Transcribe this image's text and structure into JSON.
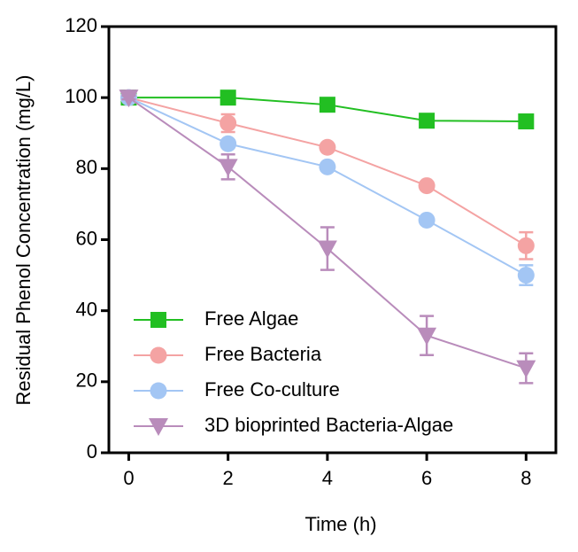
{
  "chart_data": {
    "type": "line",
    "x_label": "Time (h)",
    "y_label": "Residual Phenol Concentration (mg/L)",
    "x": [
      0,
      2,
      4,
      6,
      8
    ],
    "xlim": [
      -0.4,
      8.6
    ],
    "xticks": [
      0,
      2,
      4,
      6,
      8
    ],
    "ylim": [
      0,
      120
    ],
    "yticks": [
      0,
      20,
      40,
      60,
      80,
      100,
      120
    ],
    "legend": "lower-left",
    "series": [
      {
        "name": "Free Algae",
        "color": "#22bf22",
        "marker": "square",
        "values": [
          100,
          100,
          98,
          93.5,
          93.3
        ],
        "errors": [
          0.5,
          0.5,
          0.5,
          0.5,
          0.5
        ]
      },
      {
        "name": "Free Bacteria",
        "color": "#f4a3a3",
        "marker": "circle",
        "values": [
          100,
          92.8,
          86,
          75.2,
          58.3
        ],
        "errors": [
          0.5,
          2.5,
          0.8,
          1,
          3.8
        ]
      },
      {
        "name": "Free Co-culture",
        "color": "#a3c6f4",
        "marker": "circle",
        "values": [
          100,
          87,
          80.5,
          65.5,
          50
        ],
        "errors": [
          0.5,
          1,
          1,
          1,
          2.8
        ]
      },
      {
        "name": "3D bioprinted Bacteria-Algae",
        "color": "#b98cbb",
        "marker": "triangle-down",
        "values": [
          100,
          80.5,
          57.5,
          33,
          23.8
        ],
        "errors": [
          0.5,
          3.5,
          6,
          5.5,
          4.2
        ]
      }
    ]
  }
}
